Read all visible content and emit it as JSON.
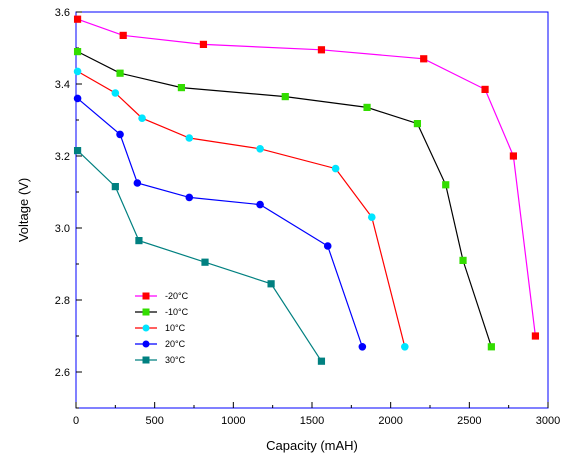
{
  "chart_data": {
    "type": "line",
    "xlabel": "Capacity (mAH)",
    "ylabel": "Voltage (V)",
    "xlim": [
      0,
      3000
    ],
    "ylim": [
      2.5,
      3.6
    ],
    "x_ticks": [
      0,
      500,
      1000,
      1500,
      2000,
      2500,
      3000
    ],
    "y_ticks": [
      2.6,
      2.8,
      3.0,
      3.2,
      3.4,
      3.6
    ],
    "y_tick_labels": [
      "2.6",
      "2.8",
      "3.0",
      "3.2",
      "3.4",
      "3.6"
    ],
    "grid": false,
    "legend_position": "bottom-left",
    "series": [
      {
        "name": "-20°C",
        "color": "#ff00ff",
        "marker_color": "#ff0000",
        "marker": "square",
        "points": [
          [
            10,
            3.58
          ],
          [
            300,
            3.535
          ],
          [
            810,
            3.51
          ],
          [
            1560,
            3.495
          ],
          [
            2210,
            3.47
          ],
          [
            2600,
            3.385
          ],
          [
            2780,
            3.2
          ],
          [
            2920,
            2.7
          ]
        ]
      },
      {
        "name": "-10°C",
        "color": "#000000",
        "marker_color": "#33dd00",
        "marker": "square",
        "points": [
          [
            10,
            3.49
          ],
          [
            280,
            3.43
          ],
          [
            670,
            3.39
          ],
          [
            1330,
            3.365
          ],
          [
            1850,
            3.335
          ],
          [
            2170,
            3.29
          ],
          [
            2350,
            3.12
          ],
          [
            2460,
            2.91
          ],
          [
            2640,
            2.67
          ]
        ]
      },
      {
        "name": "10°C",
        "color": "#ff0000",
        "marker_color": "#00e5ff",
        "marker": "circle",
        "points": [
          [
            10,
            3.435
          ],
          [
            250,
            3.375
          ],
          [
            420,
            3.305
          ],
          [
            720,
            3.25
          ],
          [
            1170,
            3.22
          ],
          [
            1650,
            3.165
          ],
          [
            1880,
            3.03
          ],
          [
            2090,
            2.67
          ]
        ]
      },
      {
        "name": "20°C",
        "color": "#0000ff",
        "marker_color": "#0000ff",
        "marker": "circle",
        "points": [
          [
            10,
            3.36
          ],
          [
            280,
            3.26
          ],
          [
            390,
            3.125
          ],
          [
            720,
            3.085
          ],
          [
            1170,
            3.065
          ],
          [
            1600,
            2.95
          ],
          [
            1820,
            2.67
          ]
        ]
      },
      {
        "name": "30°C",
        "color": "#008080",
        "marker_color": "#008080",
        "marker": "square",
        "points": [
          [
            10,
            3.215
          ],
          [
            250,
            3.115
          ],
          [
            400,
            2.965
          ],
          [
            820,
            2.905
          ],
          [
            1240,
            2.845
          ],
          [
            1560,
            2.63
          ]
        ]
      }
    ]
  }
}
